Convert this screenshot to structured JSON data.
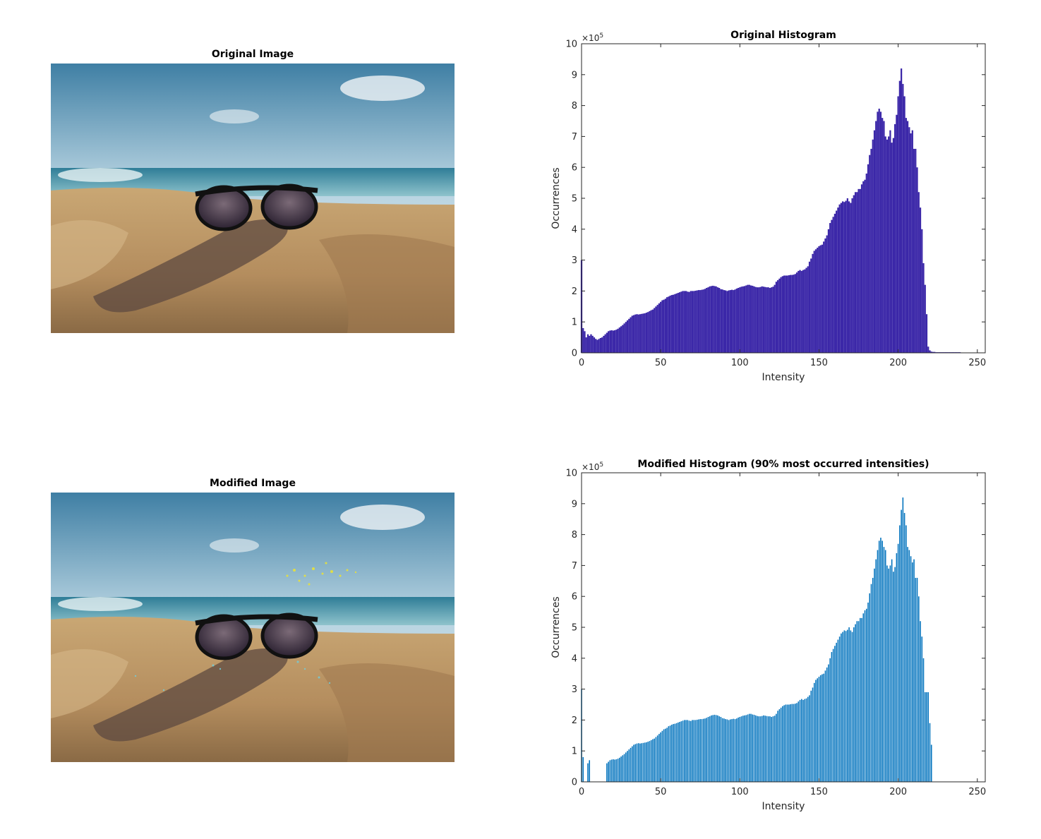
{
  "images": {
    "original_title": "Original Image",
    "modified_title": "Modified Image"
  },
  "colors": {
    "original_bars": "#3b27a8",
    "modified_bars": "#0072bd",
    "axes": "#262626"
  },
  "chart_data": [
    {
      "type": "bar",
      "title": "Original Histogram",
      "xlabel": "Intensity",
      "ylabel": "Occurrences",
      "y_exponent_label": "×10",
      "y_exponent_power": "5",
      "xlim": [
        0,
        255
      ],
      "ylim": [
        0,
        10
      ],
      "xticks": [
        0,
        50,
        100,
        150,
        200,
        250
      ],
      "yticks": [
        0,
        1,
        2,
        3,
        4,
        5,
        6,
        7,
        8,
        9,
        10
      ],
      "grid": false,
      "series": [
        {
          "x_start": 0,
          "values": [
            3.0,
            0.8,
            0.7,
            0.5,
            0.6,
            0.55,
            0.6,
            0.55,
            0.5,
            0.45,
            0.42,
            0.45,
            0.48,
            0.5,
            0.55,
            0.6,
            0.65,
            0.7,
            0.72,
            0.73,
            0.72,
            0.73,
            0.75,
            0.78,
            0.82,
            0.86,
            0.9,
            0.95,
            1.0,
            1.05,
            1.1,
            1.15,
            1.2,
            1.22,
            1.24,
            1.25,
            1.24,
            1.25,
            1.26,
            1.27,
            1.28,
            1.3,
            1.32,
            1.35,
            1.38,
            1.4,
            1.45,
            1.5,
            1.55,
            1.6,
            1.65,
            1.7,
            1.72,
            1.75,
            1.8,
            1.82,
            1.85,
            1.87,
            1.88,
            1.9,
            1.92,
            1.94,
            1.96,
            1.98,
            2.0,
            2.0,
            2.0,
            1.98,
            1.97,
            2.0,
            2.0,
            2.0,
            2.01,
            2.02,
            2.03,
            2.03,
            2.04,
            2.05,
            2.07,
            2.1,
            2.12,
            2.15,
            2.16,
            2.17,
            2.16,
            2.15,
            2.12,
            2.1,
            2.06,
            2.05,
            2.03,
            2.02,
            2.0,
            2.02,
            2.03,
            2.04,
            2.03,
            2.05,
            2.08,
            2.1,
            2.12,
            2.14,
            2.15,
            2.16,
            2.18,
            2.2,
            2.2,
            2.18,
            2.17,
            2.15,
            2.13,
            2.12,
            2.12,
            2.13,
            2.15,
            2.14,
            2.13,
            2.12,
            2.12,
            2.1,
            2.12,
            2.14,
            2.2,
            2.3,
            2.35,
            2.4,
            2.45,
            2.48,
            2.5,
            2.5,
            2.5,
            2.51,
            2.52,
            2.52,
            2.53,
            2.55,
            2.6,
            2.65,
            2.68,
            2.65,
            2.68,
            2.7,
            2.75,
            2.8,
            2.95,
            3.05,
            3.2,
            3.3,
            3.35,
            3.4,
            3.45,
            3.48,
            3.5,
            3.6,
            3.7,
            3.8,
            4.0,
            4.2,
            4.3,
            4.4,
            4.5,
            4.6,
            4.7,
            4.8,
            4.85,
            4.9,
            4.88,
            4.92,
            5.0,
            4.9,
            4.85,
            5.0,
            5.1,
            5.2,
            5.2,
            5.3,
            5.3,
            5.45,
            5.55,
            5.6,
            5.8,
            6.1,
            6.4,
            6.6,
            6.9,
            7.2,
            7.5,
            7.8,
            7.9,
            7.8,
            7.6,
            7.5,
            7.0,
            6.9,
            7.0,
            7.2,
            6.8,
            6.95,
            7.4,
            7.7,
            8.3,
            8.8,
            9.2,
            8.7,
            8.3,
            7.6,
            7.5,
            7.3,
            7.1,
            7.2,
            6.6,
            6.6,
            6.0,
            5.2,
            4.7,
            4.0,
            2.9,
            2.2,
            1.25,
            0.2,
            0.08,
            0.04,
            0.03,
            0.03,
            0.02,
            0.02,
            0.02,
            0.02,
            0.02,
            0.02,
            0.02,
            0.02,
            0.02,
            0.02,
            0.02,
            0.02,
            0.02,
            0.02,
            0.02,
            0.02
          ]
        }
      ]
    },
    {
      "type": "bar",
      "title": "Modified Histogram (90% most occurred intensities)",
      "xlabel": "Intensity",
      "ylabel": "Occurrences",
      "y_exponent_label": "×10",
      "y_exponent_power": "5",
      "xlim": [
        0,
        255
      ],
      "ylim": [
        0,
        10
      ],
      "xticks": [
        0,
        50,
        100,
        150,
        200,
        250
      ],
      "yticks": [
        0,
        1,
        2,
        3,
        4,
        5,
        6,
        7,
        8,
        9,
        10
      ],
      "grid": false,
      "series": [
        {
          "x_start": 0,
          "values": [
            3.0,
            0.8,
            0.0,
            0.0,
            0.6,
            0.7,
            0.0,
            0.0,
            0.0,
            0.0,
            0.0,
            0.0,
            0.0,
            0.0,
            0.0,
            0.0,
            0.6,
            0.65,
            0.7,
            0.72,
            0.73,
            0.72,
            0.73,
            0.75,
            0.78,
            0.82,
            0.86,
            0.9,
            0.95,
            1.0,
            1.05,
            1.1,
            1.15,
            1.2,
            1.22,
            1.24,
            1.25,
            1.24,
            1.25,
            1.26,
            1.27,
            1.28,
            1.3,
            1.32,
            1.35,
            1.38,
            1.4,
            1.45,
            1.5,
            1.55,
            1.6,
            1.65,
            1.7,
            1.72,
            1.75,
            1.8,
            1.82,
            1.85,
            1.87,
            1.88,
            1.9,
            1.92,
            1.94,
            1.96,
            1.98,
            2.0,
            2.0,
            2.0,
            1.98,
            1.97,
            2.0,
            2.0,
            2.0,
            2.01,
            2.02,
            2.03,
            2.03,
            2.04,
            2.05,
            2.07,
            2.1,
            2.12,
            2.15,
            2.16,
            2.17,
            2.16,
            2.15,
            2.12,
            2.1,
            2.06,
            2.05,
            2.03,
            2.02,
            2.0,
            2.02,
            2.03,
            2.04,
            2.03,
            2.05,
            2.08,
            2.1,
            2.12,
            2.14,
            2.15,
            2.16,
            2.18,
            2.2,
            2.2,
            2.18,
            2.17,
            2.15,
            2.13,
            2.12,
            2.12,
            2.13,
            2.15,
            2.14,
            2.13,
            2.12,
            2.12,
            2.1,
            2.12,
            2.14,
            2.2,
            2.3,
            2.35,
            2.4,
            2.45,
            2.48,
            2.5,
            2.5,
            2.5,
            2.51,
            2.52,
            2.52,
            2.53,
            2.55,
            2.6,
            2.65,
            2.68,
            2.65,
            2.68,
            2.7,
            2.75,
            2.8,
            2.95,
            3.05,
            3.2,
            3.3,
            3.35,
            3.4,
            3.45,
            3.48,
            3.5,
            3.6,
            3.7,
            3.8,
            4.0,
            4.2,
            4.3,
            4.4,
            4.5,
            4.6,
            4.7,
            4.8,
            4.85,
            4.9,
            4.88,
            4.92,
            5.0,
            4.9,
            4.85,
            5.0,
            5.1,
            5.2,
            5.2,
            5.3,
            5.3,
            5.45,
            5.55,
            5.6,
            5.8,
            6.1,
            6.4,
            6.6,
            6.9,
            7.2,
            7.5,
            7.8,
            7.9,
            7.8,
            7.6,
            7.5,
            7.0,
            6.9,
            7.0,
            7.2,
            6.8,
            6.95,
            7.4,
            7.7,
            8.3,
            8.8,
            9.2,
            8.7,
            8.3,
            7.6,
            7.5,
            7.3,
            7.1,
            7.2,
            6.6,
            6.6,
            6.0,
            5.2,
            4.7,
            4.0,
            2.9,
            2.9,
            2.9,
            1.9,
            1.2
          ]
        }
      ]
    }
  ]
}
